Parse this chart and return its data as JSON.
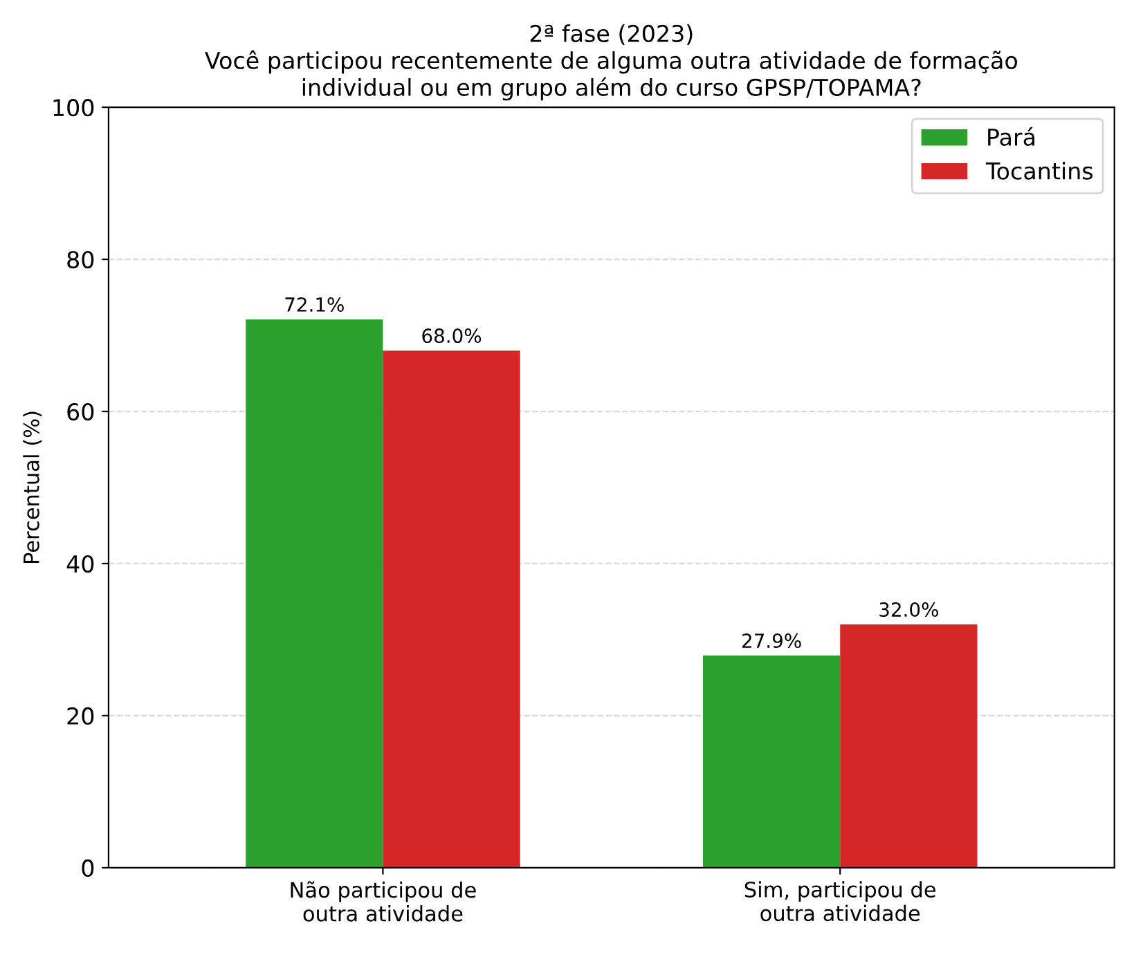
{
  "chart_data": {
    "type": "bar",
    "title": "2ª fase (2023)\nVocê participou recentemente de alguma outra atividade de formação\nindividual ou em grupo além do curso GPSP/TOPAMA?",
    "ylabel": "Percentual (%)",
    "categories": [
      "Não participou de\noutra atividade",
      "Sim, participou de\noutra atividade"
    ],
    "series": [
      {
        "name": "Pará",
        "color": "#2ca02c",
        "values": [
          72.1,
          27.9
        ],
        "value_labels": [
          "72.1%",
          "27.9%"
        ]
      },
      {
        "name": "Tocantins",
        "color": "#d62728",
        "values": [
          68.0,
          32.0
        ],
        "value_labels": [
          "68.0%",
          "32.0%"
        ]
      }
    ],
    "ylim": [
      0,
      100
    ],
    "yticks": [
      0,
      20,
      40,
      60,
      80,
      100
    ],
    "grid": "y",
    "legend": "top right"
  }
}
